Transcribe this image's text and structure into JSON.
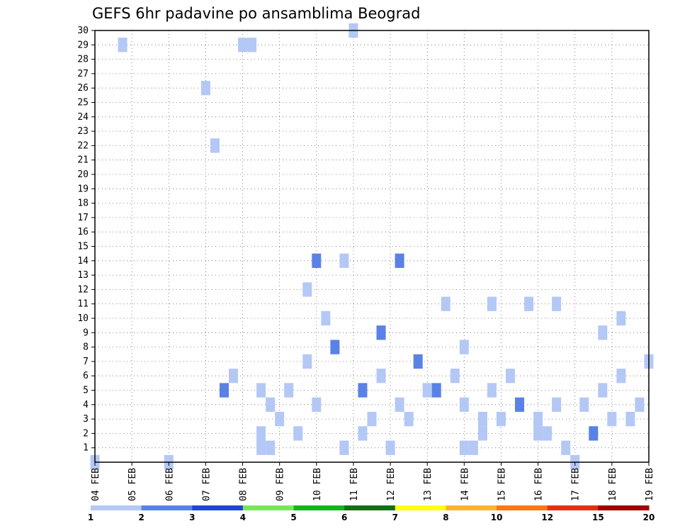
{
  "chart_data": {
    "type": "heatmap",
    "title": "GEFS 6hr padavine po ansamblima Beograd",
    "xlabel": "",
    "ylabel": "",
    "x_tick_labels": [
      "04 FEB",
      "05 FEB",
      "06 FEB",
      "07 FEB",
      "08 FEB",
      "09 FEB",
      "10 FEB",
      "11 FEB",
      "12 FEB",
      "13 FEB",
      "14 FEB",
      "15 FEB",
      "16 FEB",
      "17 FEB",
      "18 FEB",
      "19 FEB"
    ],
    "y_tick_labels": [
      "1",
      "2",
      "3",
      "4",
      "5",
      "6",
      "7",
      "8",
      "9",
      "10",
      "11",
      "12",
      "13",
      "14",
      "15",
      "16",
      "17",
      "18",
      "19",
      "20",
      "21",
      "22",
      "23",
      "24",
      "25",
      "26",
      "27",
      "28",
      "29",
      "30"
    ],
    "x_steps_6h": 61,
    "member_range": [
      0,
      30
    ],
    "grid": true,
    "colorbar": {
      "labels": [
        "1",
        "2",
        "3",
        "4",
        "5",
        "6",
        "7",
        "8",
        "10",
        "12",
        "15",
        "20"
      ],
      "colors": [
        "#b4c8f5",
        "#5a82e6",
        "#1e46d2",
        "#78e65a",
        "#14b41e",
        "#146e14",
        "#ffff14",
        "#fab432",
        "#fa7814",
        "#e13214",
        "#a00000"
      ]
    },
    "cells": [
      [
        0,
        0,
        1
      ],
      [
        3,
        29,
        1
      ],
      [
        8,
        0,
        1
      ],
      [
        12,
        26,
        1
      ],
      [
        13,
        22,
        1
      ],
      [
        14,
        5,
        2
      ],
      [
        15,
        6,
        1
      ],
      [
        16,
        29,
        1
      ],
      [
        17,
        29,
        1
      ],
      [
        18,
        1,
        1
      ],
      [
        18,
        2,
        1
      ],
      [
        18,
        5,
        1
      ],
      [
        19,
        1,
        1
      ],
      [
        19,
        4,
        1
      ],
      [
        20,
        3,
        1
      ],
      [
        21,
        5,
        1
      ],
      [
        22,
        2,
        1
      ],
      [
        23,
        7,
        1
      ],
      [
        23,
        12,
        1
      ],
      [
        24,
        4,
        1
      ],
      [
        24,
        14,
        2
      ],
      [
        25,
        10,
        1
      ],
      [
        26,
        8,
        2
      ],
      [
        27,
        1,
        1
      ],
      [
        27,
        14,
        1
      ],
      [
        28,
        30,
        1
      ],
      [
        29,
        2,
        1
      ],
      [
        29,
        5,
        2
      ],
      [
        30,
        3,
        1
      ],
      [
        31,
        6,
        1
      ],
      [
        31,
        9,
        2
      ],
      [
        32,
        1,
        1
      ],
      [
        33,
        4,
        1
      ],
      [
        33,
        14,
        2
      ],
      [
        34,
        3,
        1
      ],
      [
        35,
        7,
        2
      ],
      [
        36,
        5,
        1
      ],
      [
        37,
        5,
        2
      ],
      [
        38,
        11,
        1
      ],
      [
        39,
        6,
        1
      ],
      [
        40,
        1,
        1
      ],
      [
        40,
        4,
        1
      ],
      [
        40,
        8,
        1
      ],
      [
        41,
        1,
        1
      ],
      [
        42,
        2,
        1
      ],
      [
        42,
        3,
        1
      ],
      [
        43,
        5,
        1
      ],
      [
        43,
        11,
        1
      ],
      [
        44,
        3,
        1
      ],
      [
        45,
        6,
        1
      ],
      [
        46,
        4,
        2
      ],
      [
        47,
        11,
        1
      ],
      [
        48,
        2,
        1
      ],
      [
        48,
        3,
        1
      ],
      [
        49,
        2,
        1
      ],
      [
        50,
        4,
        1
      ],
      [
        50,
        11,
        1
      ],
      [
        51,
        1,
        1
      ],
      [
        52,
        0,
        1
      ],
      [
        53,
        4,
        1
      ],
      [
        54,
        2,
        2
      ],
      [
        55,
        5,
        1
      ],
      [
        55,
        9,
        1
      ],
      [
        56,
        3,
        1
      ],
      [
        57,
        6,
        1
      ],
      [
        57,
        10,
        1
      ],
      [
        58,
        3,
        1
      ],
      [
        59,
        4,
        1
      ],
      [
        60,
        7,
        1
      ]
    ]
  }
}
